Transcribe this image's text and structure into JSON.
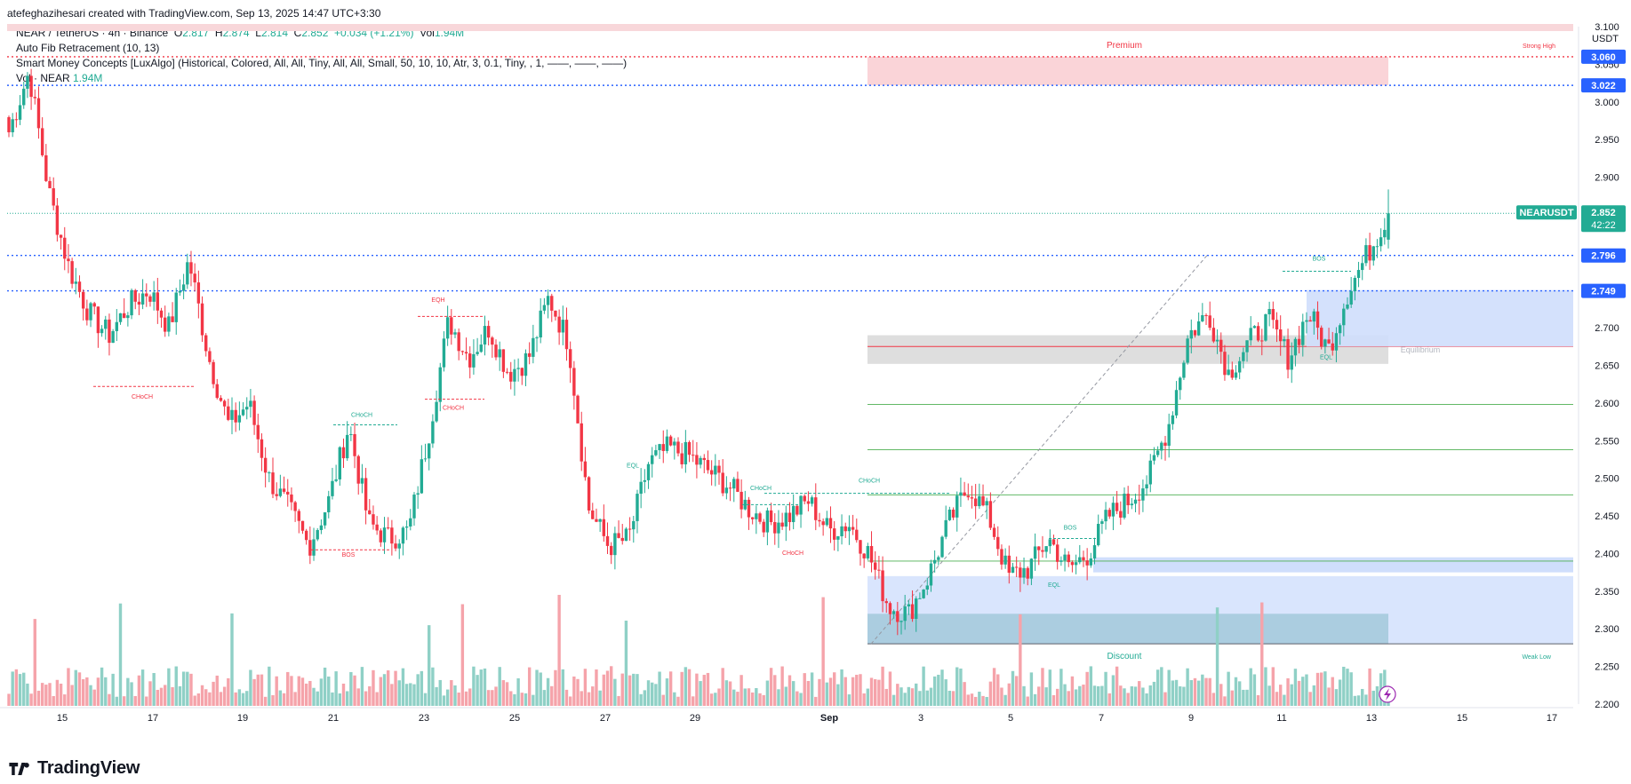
{
  "header": {
    "creator": "atefeghazihesari created with TradingView.com, Sep 13, 2025 14:47 UTC+3:30"
  },
  "legend": {
    "symbol": "NEAR / TetherUS · 4h · Binance",
    "o_label": "O",
    "o": "2.817",
    "h_label": "H",
    "h": "2.874",
    "l_label": "L",
    "l": "2.814",
    "c_label": "C",
    "c": "2.852",
    "change": "+0.034 (+1.21%)",
    "vol_label": "Vol",
    "vol": "1.94M",
    "fib": "Auto Fib Retracement (10, 13)",
    "smc": "Smart Money Concepts [LuxAlgo] (Historical, Colored, All, All, Tiny, All, All, Small, 50, 10, 10, Atr, 3, 0.1, Tiny, , 1, ——, ——, ——)",
    "vol_ind": "Vol · NEAR",
    "vol_ind_val": "1.94M"
  },
  "axis": {
    "currency": "USDT",
    "ticks": [
      "3.100",
      "3.050",
      "3.000",
      "2.950",
      "2.900",
      "2.850",
      "2.800",
      "2.750",
      "2.700",
      "2.650",
      "2.600",
      "2.550",
      "2.500",
      "2.450",
      "2.400",
      "2.350",
      "2.300",
      "2.250",
      "2.200"
    ],
    "x_labels": [
      "15",
      "17",
      "19",
      "21",
      "23",
      "25",
      "27",
      "29",
      "Sep",
      "3",
      "5",
      "7",
      "9",
      "11",
      "13",
      "15",
      "17"
    ]
  },
  "price_tags": [
    {
      "value": "3.060",
      "color": "#2962ff"
    },
    {
      "value": "3.022",
      "color": "#2962ff"
    },
    {
      "value": "2.796",
      "color": "#2962ff"
    },
    {
      "value": "2.749",
      "color": "#2962ff"
    }
  ],
  "current": {
    "symbol": "NEARUSDT",
    "price": "2.852",
    "countdown": "42:22",
    "color": "#22ab94"
  },
  "annotations": {
    "premium": "Premium",
    "discount": "Discount",
    "equilibrium": "Equilibrium",
    "strong_high": "Strong High",
    "weak_low": "Weak Low",
    "choch": "CHoCH",
    "bos": "BOS",
    "eqh": "EQH",
    "eql": "EQL"
  },
  "footer": {
    "brand": "TradingView"
  },
  "colors": {
    "up": "#22ab94",
    "down": "#f23645",
    "vol_up": "#8fd0c6",
    "vol_down": "#f5a3aa"
  },
  "chart_data": {
    "type": "candlestick",
    "title": "NEAR / TetherUS · 4h · Binance",
    "ylim": [
      2.2,
      3.1
    ],
    "x_categories": [
      "15",
      "17",
      "19",
      "21",
      "23",
      "25",
      "27",
      "29",
      "Sep",
      "3",
      "5",
      "7",
      "9",
      "11",
      "13",
      "15",
      "17"
    ],
    "levels": {
      "strong_high": 3.06,
      "fib_top": 3.022,
      "recent_high": 2.796,
      "resistance": 2.749,
      "equilibrium": 2.675,
      "weak_low": 2.28
    },
    "close_path": [
      2.96,
      3.04,
      2.88,
      2.78,
      2.72,
      2.69,
      2.73,
      2.75,
      2.7,
      2.79,
      2.66,
      2.57,
      2.6,
      2.5,
      2.46,
      2.41,
      2.47,
      2.57,
      2.44,
      2.42,
      2.43,
      2.56,
      2.71,
      2.66,
      2.7,
      2.64,
      2.66,
      2.74,
      2.68,
      2.46,
      2.41,
      2.42,
      2.52,
      2.54,
      2.53,
      2.51,
      2.49,
      2.46,
      2.44,
      2.45,
      2.47,
      2.43,
      2.44,
      2.4,
      2.33,
      2.32,
      2.37,
      2.44,
      2.49,
      2.45,
      2.37,
      2.38,
      2.42,
      2.38,
      2.4,
      2.45,
      2.47,
      2.5,
      2.57,
      2.69,
      2.72,
      2.64,
      2.68,
      2.71,
      2.66,
      2.72,
      2.67,
      2.75,
      2.8,
      2.852
    ],
    "last": {
      "open": 2.817,
      "high": 2.874,
      "low": 2.814,
      "close": 2.852,
      "volume": "1.94M"
    }
  }
}
